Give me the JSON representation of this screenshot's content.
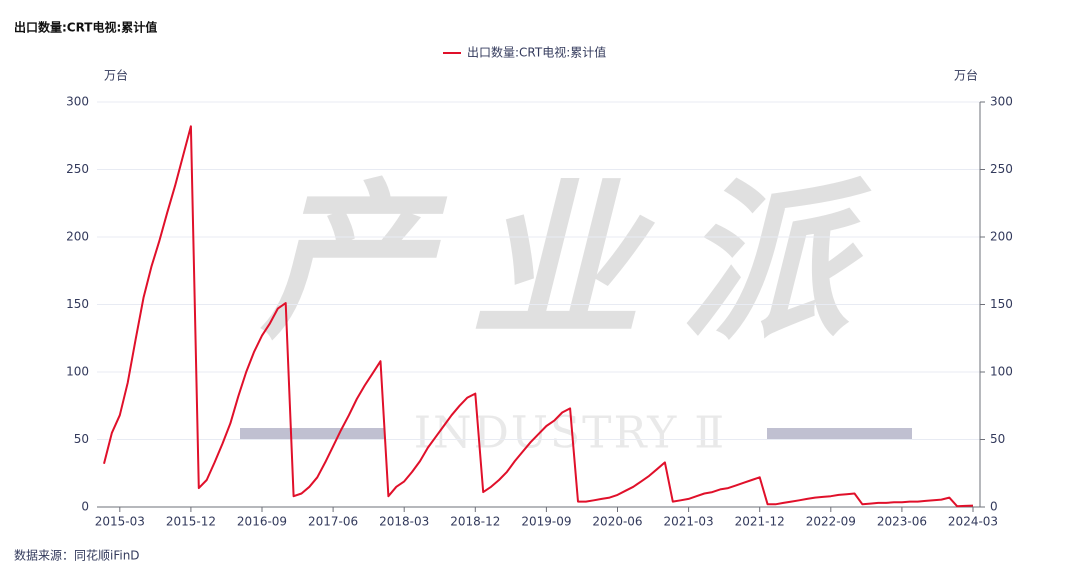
{
  "chart_data": {
    "type": "line",
    "title": "出口数量:CRT电视:累计值",
    "y_label": "万台",
    "y2_label": "万台",
    "source": "数据来源：同花顺iFinD",
    "watermark": {
      "title": "产业派",
      "subtitle": "INDUSTRY Ⅱ"
    },
    "categories": [
      null,
      null,
      "2015-03",
      null,
      null,
      null,
      null,
      null,
      null,
      null,
      null,
      "2015-12",
      null,
      null,
      null,
      null,
      null,
      null,
      null,
      null,
      "2016-09",
      null,
      null,
      null,
      null,
      null,
      null,
      null,
      null,
      "2017-06",
      null,
      null,
      null,
      null,
      null,
      null,
      null,
      null,
      "2018-03",
      null,
      null,
      null,
      null,
      null,
      null,
      null,
      null,
      "2018-12",
      null,
      null,
      null,
      null,
      null,
      null,
      null,
      null,
      "2019-09",
      null,
      null,
      null,
      null,
      null,
      null,
      null,
      null,
      "2020-06",
      null,
      null,
      null,
      null,
      null,
      null,
      null,
      null,
      "2021-03",
      null,
      null,
      null,
      null,
      null,
      null,
      null,
      null,
      "2021-12",
      null,
      null,
      null,
      null,
      null,
      null,
      null,
      null,
      "2022-09",
      null,
      null,
      null,
      null,
      null,
      null,
      null,
      null,
      "2023-06",
      null,
      null,
      null,
      null,
      null,
      null,
      null,
      null,
      "2024-03"
    ],
    "series": [
      {
        "name": "出口数量:CRT电视:累计值",
        "color": "#e0102a",
        "values": [
          32,
          55,
          68,
          92,
          124,
          155,
          178,
          197,
          218,
          238,
          260,
          282,
          14,
          20,
          33,
          47,
          62,
          82,
          100,
          115,
          127,
          136,
          147,
          151,
          8,
          10,
          15,
          22,
          33,
          45,
          57,
          68,
          80,
          90,
          99,
          108,
          8,
          15,
          19,
          26,
          34,
          44,
          52,
          60,
          68,
          75,
          81,
          84,
          11,
          15,
          20,
          26,
          34,
          41,
          48,
          54,
          60,
          64,
          70,
          73,
          4,
          4,
          5,
          6,
          7,
          9,
          12,
          15,
          19,
          23,
          28,
          33,
          4,
          5,
          6,
          8,
          10,
          11,
          13,
          14,
          16,
          18,
          20,
          22,
          2,
          2,
          3,
          4,
          5,
          6,
          7,
          7.5,
          8,
          9,
          9.5,
          10,
          2,
          2.5,
          3,
          3,
          3.5,
          3.5,
          4,
          4,
          4.5,
          5,
          5.5,
          7,
          0.5,
          0.8,
          1
        ]
      }
    ],
    "ylim": [
      0,
      300
    ],
    "yticks": [
      0,
      50,
      100,
      150,
      200,
      250,
      300
    ],
    "y2lim": [
      0,
      300
    ],
    "y2ticks": [
      0,
      50,
      100,
      150,
      200,
      250,
      300
    ],
    "grid": true
  }
}
